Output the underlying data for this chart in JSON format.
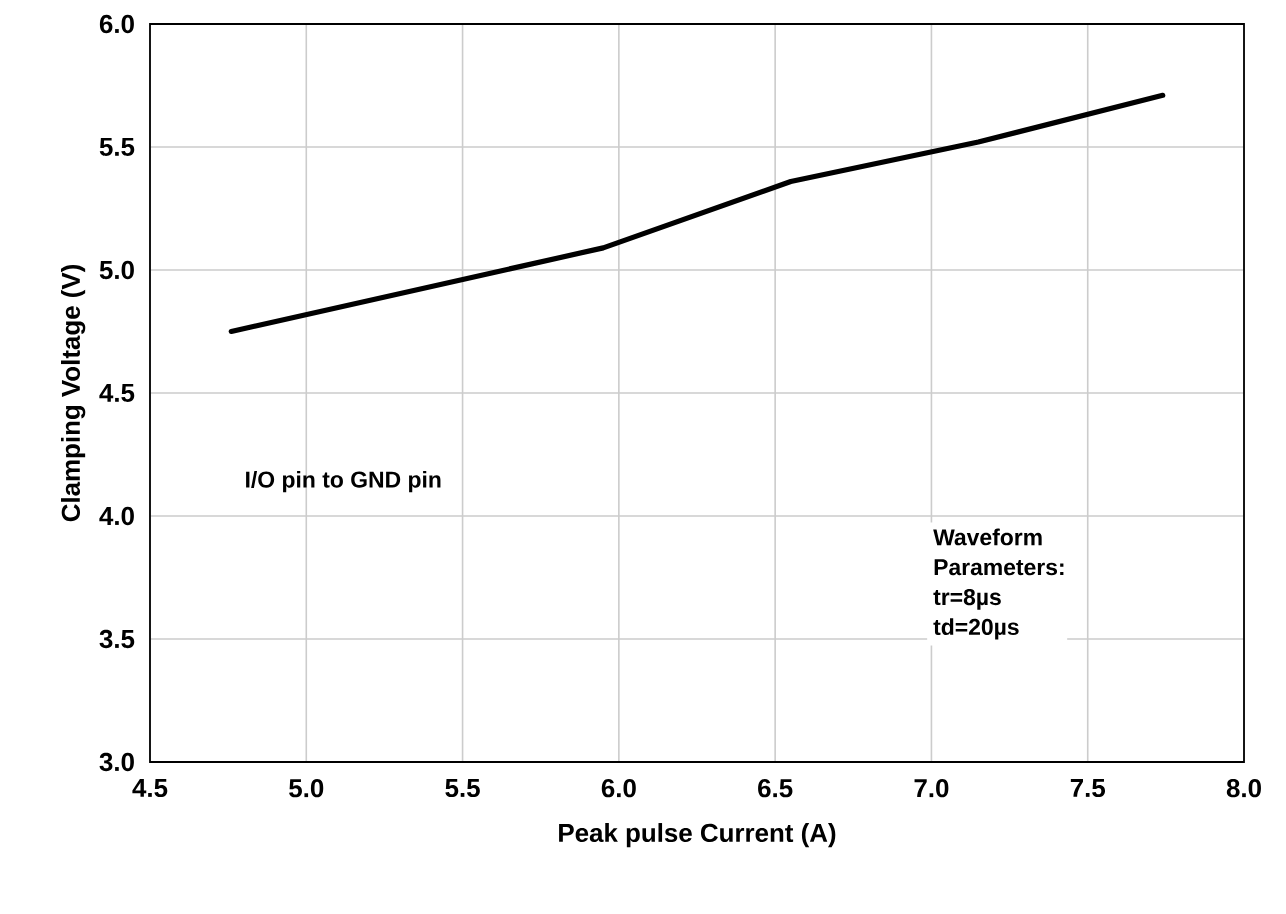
{
  "chart_data": {
    "type": "line",
    "xlabel": "Peak pulse Current (A)",
    "ylabel": "Clamping Voltage (V)",
    "x": [
      4.76,
      5.95,
      6.55,
      7.15,
      7.74
    ],
    "series": [
      {
        "color": "#000000",
        "values": [
          4.75,
          5.09,
          5.36,
          5.52,
          5.71
        ]
      }
    ],
    "xlim": [
      4.5,
      8.0
    ],
    "ylim": [
      3.0,
      6.0
    ],
    "xticks": [
      {
        "value": 4.5,
        "label": "4.5"
      },
      {
        "value": 5.0,
        "label": "5.0"
      },
      {
        "value": 5.5,
        "label": "5.5"
      },
      {
        "value": 6.0,
        "label": "6.0"
      },
      {
        "value": 6.5,
        "label": "6.5"
      },
      {
        "value": 7.0,
        "label": "7.0"
      },
      {
        "value": 7.5,
        "label": "7.5"
      },
      {
        "value": 8.0,
        "label": "8.0"
      }
    ],
    "yticks": [
      {
        "value": 3.0,
        "label": "3.0"
      },
      {
        "value": 3.5,
        "label": "3.5"
      },
      {
        "value": 4.0,
        "label": "4.0"
      },
      {
        "value": 4.5,
        "label": "4.5"
      },
      {
        "value": 5.0,
        "label": "5.0"
      },
      {
        "value": 5.5,
        "label": "5.5"
      },
      {
        "value": 6.0,
        "label": "6.0"
      }
    ],
    "grid": true,
    "marker": "none",
    "line_style": "solid",
    "annotations": [
      "I/O pin to GND pin",
      "Waveform Parameters:",
      "tr=8µs",
      "td=20µs"
    ]
  }
}
